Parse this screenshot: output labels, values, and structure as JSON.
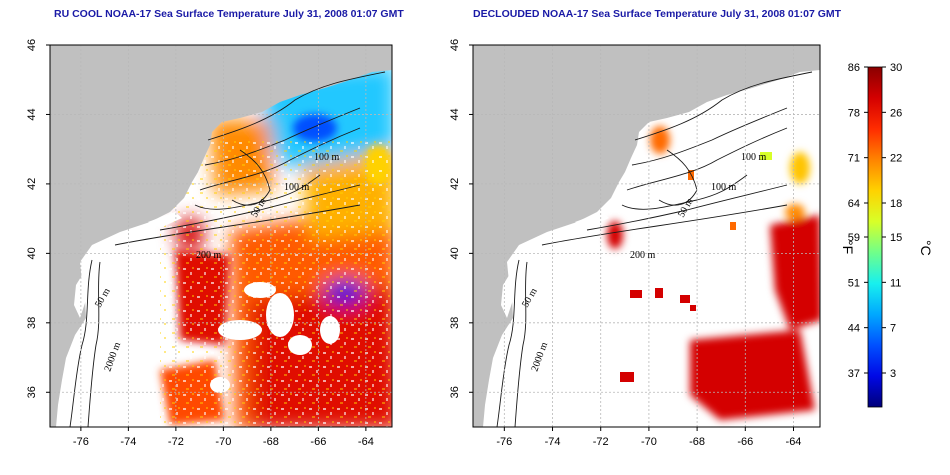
{
  "panels": [
    {
      "title": "RU COOL NOAA-17 Sea Surface Temperature July 31, 2008 01:07 GMT",
      "kind": "raw",
      "isobath_labels": [
        "100 m",
        "100 m",
        "50 m",
        "200 m",
        "50 m",
        "2000 m"
      ]
    },
    {
      "title": "DECLOUDED NOAA-17 Sea Surface Temperature July 31, 2008 01:07 GMT",
      "kind": "declouded",
      "isobath_labels": [
        "100 m",
        "100 m",
        "50 m",
        "200 m",
        "50 m",
        "2000 m"
      ]
    }
  ],
  "axes": {
    "lon_ticks": [
      "-76",
      "-74",
      "-72",
      "-70",
      "-68",
      "-66",
      "-64"
    ],
    "lat_ticks": [
      "36",
      "38",
      "40",
      "42",
      "44",
      "46"
    ],
    "lon_range": [
      -77.3,
      -62.9
    ],
    "lat_range": [
      35.0,
      46.0
    ]
  },
  "colorbar": {
    "fahrenheit_ticks": [
      "86",
      "78",
      "71",
      "64",
      "59",
      "51",
      "44",
      "37"
    ],
    "celsius_ticks": [
      "30",
      "26",
      "22",
      "18",
      "15",
      "11",
      "7",
      "3"
    ],
    "fahrenheit_label": "°F",
    "celsius_label": "°C",
    "range_c": [
      0,
      30
    ],
    "colors": [
      "#00007a",
      "#0008e6",
      "#0050ff",
      "#00a8ff",
      "#18f0ee",
      "#70ff8a",
      "#d8ff28",
      "#ffd200",
      "#ff8400",
      "#ff2c00",
      "#d40000",
      "#8a0000"
    ]
  },
  "colors": {
    "land": "#c0c0c0",
    "water": "#ffffff",
    "title": "#1a1aa6",
    "grid": "#b8b8b8"
  }
}
